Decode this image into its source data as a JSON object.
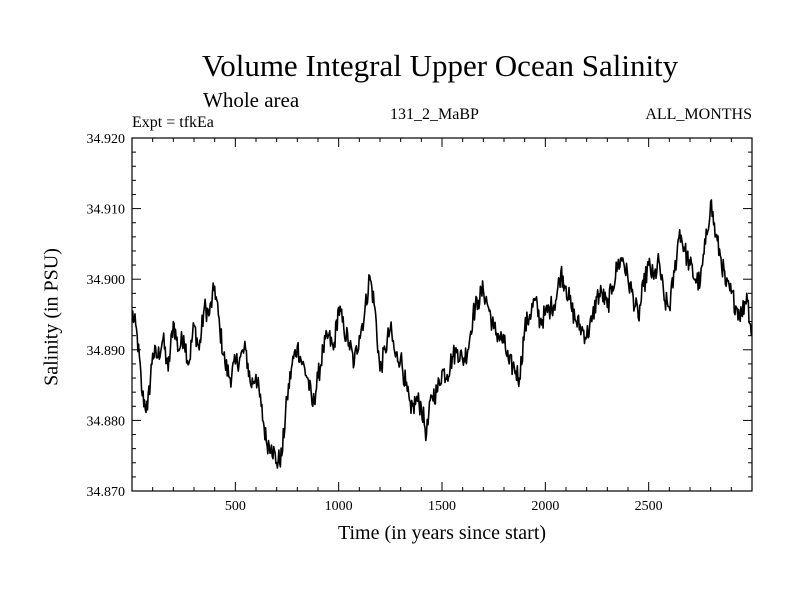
{
  "chart_data": {
    "type": "line",
    "title": "Volume Integral Upper Ocean Salinity",
    "subtitle": "Whole area",
    "left_label": "Expt = tfkEa",
    "center_label": "131_2_MaBP",
    "right_label": "ALL_MONTHS",
    "xlabel": "Time (in years since start)",
    "ylabel": "Salinity (in PSU)",
    "xlim": [
      0,
      3000
    ],
    "ylim": [
      34.87,
      34.92
    ],
    "xticks": [
      500,
      1000,
      1500,
      2000,
      2500
    ],
    "xtick_labels": [
      "500",
      "1000",
      "1500",
      "2000",
      "2500"
    ],
    "yticks": [
      34.87,
      34.88,
      34.89,
      34.9,
      34.91,
      34.92
    ],
    "ytick_labels": [
      "34.870",
      "34.880",
      "34.890",
      "34.900",
      "34.910",
      "34.920"
    ],
    "grid": false,
    "series": [
      {
        "color": "#000000",
        "x": [
          0,
          25,
          50,
          75,
          100,
          125,
          150,
          175,
          200,
          225,
          250,
          275,
          300,
          325,
          350,
          375,
          400,
          425,
          450,
          475,
          500,
          525,
          550,
          575,
          600,
          625,
          650,
          675,
          700,
          725,
          750,
          775,
          800,
          825,
          850,
          875,
          900,
          925,
          950,
          975,
          1000,
          1025,
          1050,
          1075,
          1100,
          1125,
          1150,
          1175,
          1200,
          1225,
          1250,
          1275,
          1300,
          1325,
          1350,
          1375,
          1400,
          1425,
          1450,
          1475,
          1500,
          1525,
          1550,
          1575,
          1600,
          1625,
          1650,
          1675,
          1700,
          1725,
          1750,
          1775,
          1800,
          1825,
          1850,
          1875,
          1900,
          1925,
          1950,
          1975,
          2000,
          2025,
          2050,
          2075,
          2100,
          2125,
          2150,
          2175,
          2200,
          2225,
          2250,
          2275,
          2300,
          2325,
          2350,
          2375,
          2400,
          2425,
          2450,
          2475,
          2500,
          2525,
          2550,
          2575,
          2600,
          2625,
          2650,
          2675,
          2700,
          2725,
          2750,
          2775,
          2800,
          2825,
          2850,
          2875,
          2900,
          2925,
          2950,
          2975,
          3000
        ],
        "y": [
          34.8955,
          34.892,
          34.8835,
          34.8815,
          34.8895,
          34.889,
          34.8915,
          34.887,
          34.894,
          34.89,
          34.892,
          34.888,
          34.8935,
          34.89,
          34.896,
          34.895,
          34.899,
          34.893,
          34.888,
          34.886,
          34.888,
          34.889,
          34.89,
          34.885,
          34.8865,
          34.882,
          34.877,
          34.8765,
          34.874,
          34.875,
          34.883,
          34.888,
          34.8905,
          34.888,
          34.886,
          34.882,
          34.886,
          34.89,
          34.892,
          34.89,
          34.896,
          34.893,
          34.891,
          34.888,
          34.892,
          34.895,
          34.9005,
          34.896,
          34.887,
          34.89,
          34.893,
          34.889,
          34.889,
          34.885,
          34.881,
          34.883,
          34.882,
          34.878,
          34.8835,
          34.884,
          34.887,
          34.8865,
          34.889,
          34.89,
          34.8885,
          34.89,
          34.895,
          34.897,
          34.8985,
          34.896,
          34.893,
          34.892,
          34.891,
          34.888,
          34.8875,
          34.886,
          34.893,
          34.895,
          34.897,
          34.894,
          34.895,
          34.896,
          34.897,
          34.901,
          34.899,
          34.896,
          34.894,
          34.893,
          34.892,
          34.894,
          34.8975,
          34.898,
          34.896,
          34.899,
          34.902,
          34.903,
          34.9,
          34.8975,
          34.8945,
          34.899,
          34.902,
          34.9,
          34.9025,
          34.897,
          34.896,
          34.901,
          34.907,
          34.904,
          34.902,
          34.9,
          34.8995,
          34.905,
          34.911,
          34.906,
          34.903,
          34.899,
          34.898,
          34.896,
          34.895,
          34.898,
          34.892
        ]
      }
    ]
  }
}
